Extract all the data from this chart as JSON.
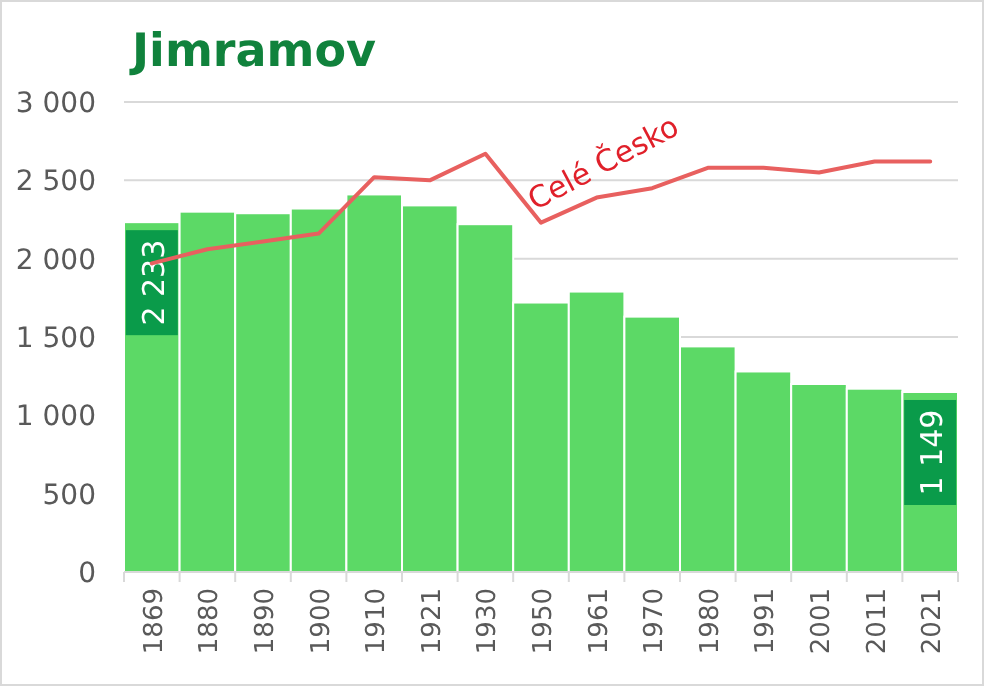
{
  "chart_data": {
    "type": "bar",
    "title": "Jimramov",
    "categories": [
      "1869",
      "1880",
      "1890",
      "1900",
      "1910",
      "1921",
      "1930",
      "1950",
      "1961",
      "1970",
      "1980",
      "1991",
      "2001",
      "2011",
      "2021"
    ],
    "series": [
      {
        "color": "#5cd966",
        "values": [
          2233,
          2300,
          2290,
          2320,
          2410,
          2340,
          2220,
          1720,
          1790,
          1630,
          1440,
          1280,
          1200,
          1170,
          1149
        ],
        "value_labels": [
          "2 233",
          null,
          null,
          null,
          null,
          null,
          null,
          null,
          null,
          null,
          null,
          null,
          null,
          null,
          "1 149"
        ]
      },
      {
        "type": "line",
        "name": "Celé Česko",
        "color": "#e8605f",
        "values": [
          1970,
          2060,
          2110,
          2160,
          2520,
          2500,
          2670,
          2230,
          2390,
          2450,
          2580,
          2580,
          2550,
          2620,
          2620
        ]
      }
    ],
    "ylim": [
      0,
      3000
    ],
    "yticks": [
      0,
      500,
      {
        "value": 1000,
        "label": "1 000"
      },
      {
        "value": 1500,
        "label": "1 500"
      },
      {
        "value": 2000,
        "label": "2 000"
      },
      {
        "value": 2500,
        "label": "2 500"
      },
      {
        "value": 3000,
        "label": "3 000"
      }
    ],
    "grid": "y",
    "marker": "none",
    "line_style": "solid"
  }
}
